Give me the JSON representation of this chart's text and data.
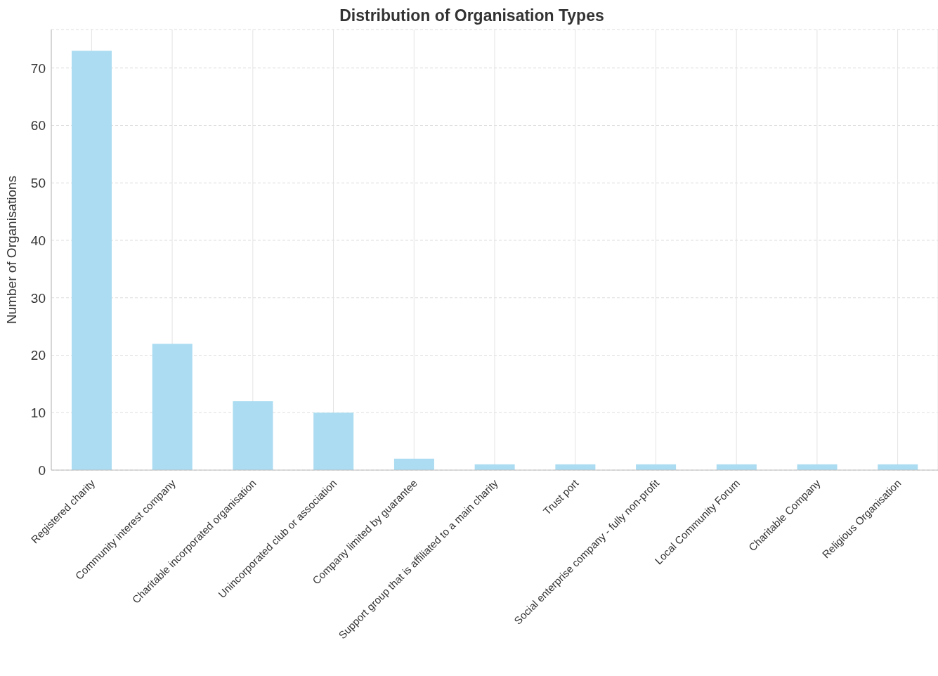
{
  "chart_data": {
    "type": "bar",
    "title": "Distribution of Organisation Types",
    "ylabel": "Number of Organisations",
    "categories": [
      "Registered charity",
      "Community interest company",
      "Charitable incorporated organisation",
      "Unincorporated club or association",
      "Company limited by guarantee",
      "Support group that is affiliated to a main charity",
      "Trust port",
      "Social enterprise company - fully non-profit",
      "Local Community Forum",
      "Charitable Company",
      "Religious Organisation"
    ],
    "values": [
      73,
      22,
      12,
      10,
      2,
      1,
      1,
      1,
      1,
      1,
      1
    ],
    "color": "#abdcf1",
    "ylim": [
      0,
      76.7
    ],
    "yticks": [
      0,
      10,
      20,
      30,
      40,
      50,
      60,
      70
    ],
    "grid": true
  }
}
